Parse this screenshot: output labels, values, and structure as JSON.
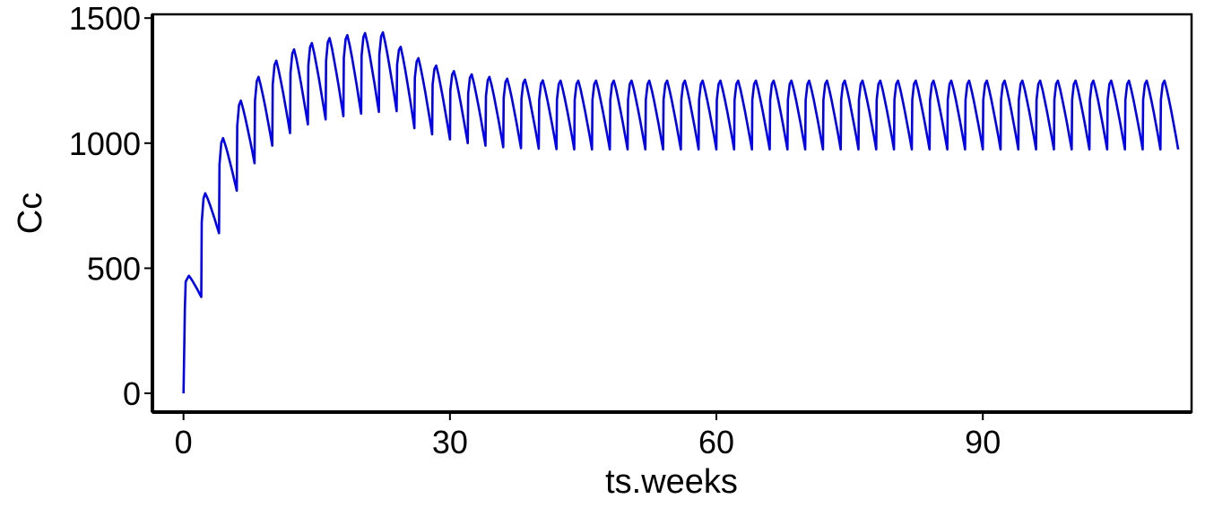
{
  "chart_data": {
    "type": "line",
    "xlabel": "ts.weeks",
    "ylabel": "Cc",
    "xlim": [
      -3.5,
      113.5
    ],
    "ylim": [
      -75,
      1515
    ],
    "x_ticks": [
      0,
      30,
      60,
      90
    ],
    "x_tick_labels": [
      "0",
      "30",
      "60",
      "90"
    ],
    "y_ticks": [
      0,
      500,
      1000,
      1500
    ],
    "y_tick_labels": [
      "0",
      "500",
      "1000",
      "1500"
    ],
    "grid": false,
    "legend": "none",
    "series": [
      {
        "color": "#0000ee",
        "dose_interval_weeks": 2,
        "end_week": 112,
        "peaks": [
          470,
          800,
          1020,
          1170,
          1265,
          1330,
          1375,
          1400,
          1420,
          1432,
          1440,
          1443,
          1385,
          1340,
          1310,
          1288,
          1275,
          1265,
          1258,
          1254,
          1251,
          1250,
          1250,
          1250,
          1250,
          1250,
          1250,
          1250,
          1250,
          1250,
          1250,
          1250,
          1250,
          1250,
          1250,
          1250,
          1250,
          1250,
          1250,
          1250,
          1250,
          1250,
          1250,
          1250,
          1250,
          1250,
          1250,
          1250,
          1250,
          1250,
          1250,
          1250,
          1250,
          1250,
          1250,
          1250
        ],
        "troughs": [
          385,
          640,
          810,
          920,
          990,
          1040,
          1075,
          1095,
          1108,
          1118,
          1125,
          1128,
          1060,
          1035,
          1015,
          1000,
          990,
          984,
          980,
          978,
          976,
          975,
          975,
          975,
          975,
          975,
          975,
          975,
          975,
          975,
          975,
          975,
          975,
          975,
          975,
          975,
          975,
          975,
          975,
          975,
          975,
          975,
          975,
          975,
          975,
          975,
          975,
          975,
          975,
          975,
          975,
          975,
          975,
          975,
          975,
          975
        ]
      }
    ]
  }
}
